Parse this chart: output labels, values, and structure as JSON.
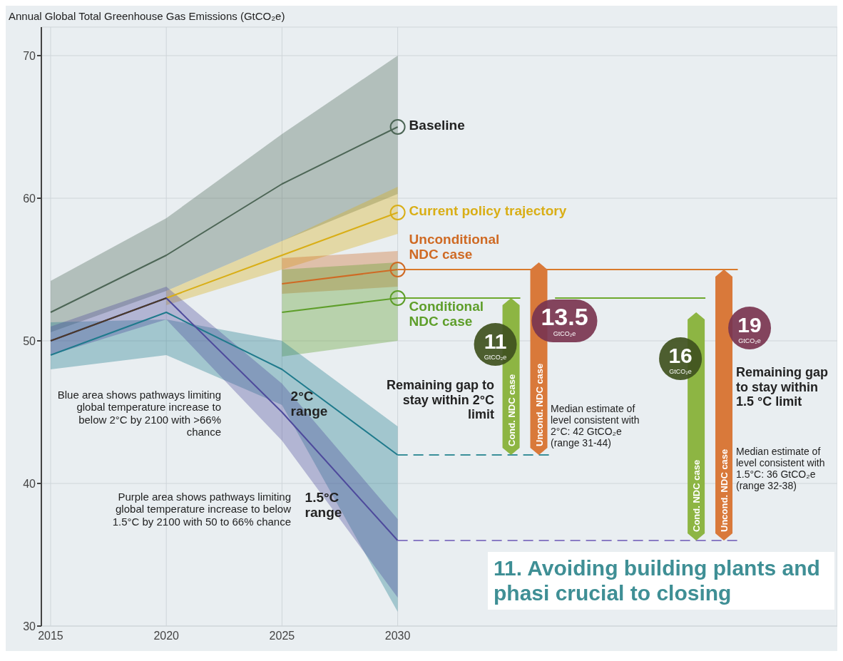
{
  "chart_data": {
    "type": "line",
    "title": "Annual Global Total Greenhouse Gas Emissions (GtCO₂e)",
    "xlim": [
      2014.6,
      2049
    ],
    "xticks": [
      2015,
      2020,
      2025,
      2030
    ],
    "ylim": [
      30,
      72
    ],
    "yticks": [
      30,
      40,
      50,
      60,
      70
    ],
    "grid": true,
    "series": [
      {
        "name": "Baseline",
        "color": "#4d6656",
        "x": [
          2015,
          2020,
          2025,
          2030
        ],
        "values": [
          52,
          56,
          61,
          65
        ],
        "lower": [
          50.6,
          53.5,
          57,
          60.3
        ],
        "upper": [
          54.2,
          58.6,
          64.5,
          70
        ]
      },
      {
        "name": "Current policy trajectory",
        "color": "#d9ae16",
        "x": [
          2020,
          2025,
          2030
        ],
        "values": [
          53,
          56,
          59
        ],
        "lower": [
          52.5,
          55,
          57.5
        ],
        "upper": [
          53.5,
          57,
          60.8
        ]
      },
      {
        "name": "Unconditional NDC case",
        "color": "#cf6a24",
        "x": [
          2025,
          2030
        ],
        "values": [
          54,
          55
        ],
        "lower": [
          53.3,
          53.8
        ],
        "upper": [
          55.8,
          56.3
        ]
      },
      {
        "name": "Conditional NDC case",
        "color": "#5e9e2a",
        "x": [
          2025,
          2030
        ],
        "values": [
          52,
          53
        ],
        "lower": [
          48.9,
          50
        ],
        "upper": [
          55,
          55.5
        ]
      },
      {
        "name": "2°C range",
        "color": "#1f7a8c",
        "x": [
          2015,
          2020,
          2025,
          2030
        ],
        "values": [
          49,
          52,
          48,
          42
        ],
        "lower": [
          48,
          49,
          45.5,
          31
        ],
        "upper": [
          51.3,
          51.5,
          50,
          44
        ]
      },
      {
        "name": "1.5°C range",
        "color": "#4e4a9c",
        "x": [
          2015,
          2020,
          2025,
          2030
        ],
        "values": [
          50,
          53,
          45,
          36
        ],
        "lower": [
          49,
          51.5,
          43,
          32
        ],
        "upper": [
          51,
          53.8,
          47,
          37.5
        ]
      },
      {
        "color": "#4a3a2a",
        "x": [
          2015,
          2020
        ],
        "values": [
          50,
          53
        ]
      },
      {
        "color": "#d97a2b",
        "x": [
          2030,
          2044.7
        ],
        "values": [
          55,
          55
        ]
      },
      {
        "color": "#6ea82e",
        "x": [
          2030,
          2035.3
        ],
        "values": [
          53,
          53
        ]
      },
      {
        "color": "#6ea82e",
        "x": [
          2036.8,
          2043.3
        ],
        "values": [
          53,
          53
        ]
      },
      {
        "color": "#3a8f9a",
        "x": [
          2030,
          2036.6
        ],
        "values": [
          42,
          42
        ],
        "line_style": "dashed"
      },
      {
        "color": "#8a7cc4",
        "x": [
          2030,
          2044.7
        ],
        "values": [
          36,
          36
        ],
        "line_style": "dashed"
      },
      {
        "type": "bar",
        "name": "Cond. NDC case",
        "color": "#8db543",
        "x": [
          2034.9,
          2042.9
        ],
        "values": [
          11,
          16
        ],
        "base": [
          42,
          36
        ],
        "value_labels": [
          "11 GtCO₂e",
          "16 GtCO₂e"
        ]
      },
      {
        "type": "bar",
        "name": "Uncond. NDC case",
        "color": "#d9793a",
        "x": [
          2036.1,
          2044.1
        ],
        "values": [
          13.5,
          19
        ],
        "base": [
          42,
          36
        ],
        "value_labels": [
          "13.5 GtCO₂e",
          "19 GtCO₂e"
        ]
      }
    ],
    "annotations": [
      "Blue area shows pathways limiting global temperature increase to below 2°C by 2100 with >66% chance",
      "Purple area shows pathways limiting global temperature increase to below 1.5°C by 2100 with 50 to 66% chance",
      "Remaining gap to stay within 2°C limit",
      "Median estimate of level consistent with 2°C: 42 GtCO₂e (range 31-44)",
      "Remaining gap to stay within 1.5 °C limit",
      "Median estimate of level consistent with 1.5°C: 36 GtCO₂e (range 32-38)",
      "11. Avoiding building plants and phasi crucial to closing"
    ]
  }
}
